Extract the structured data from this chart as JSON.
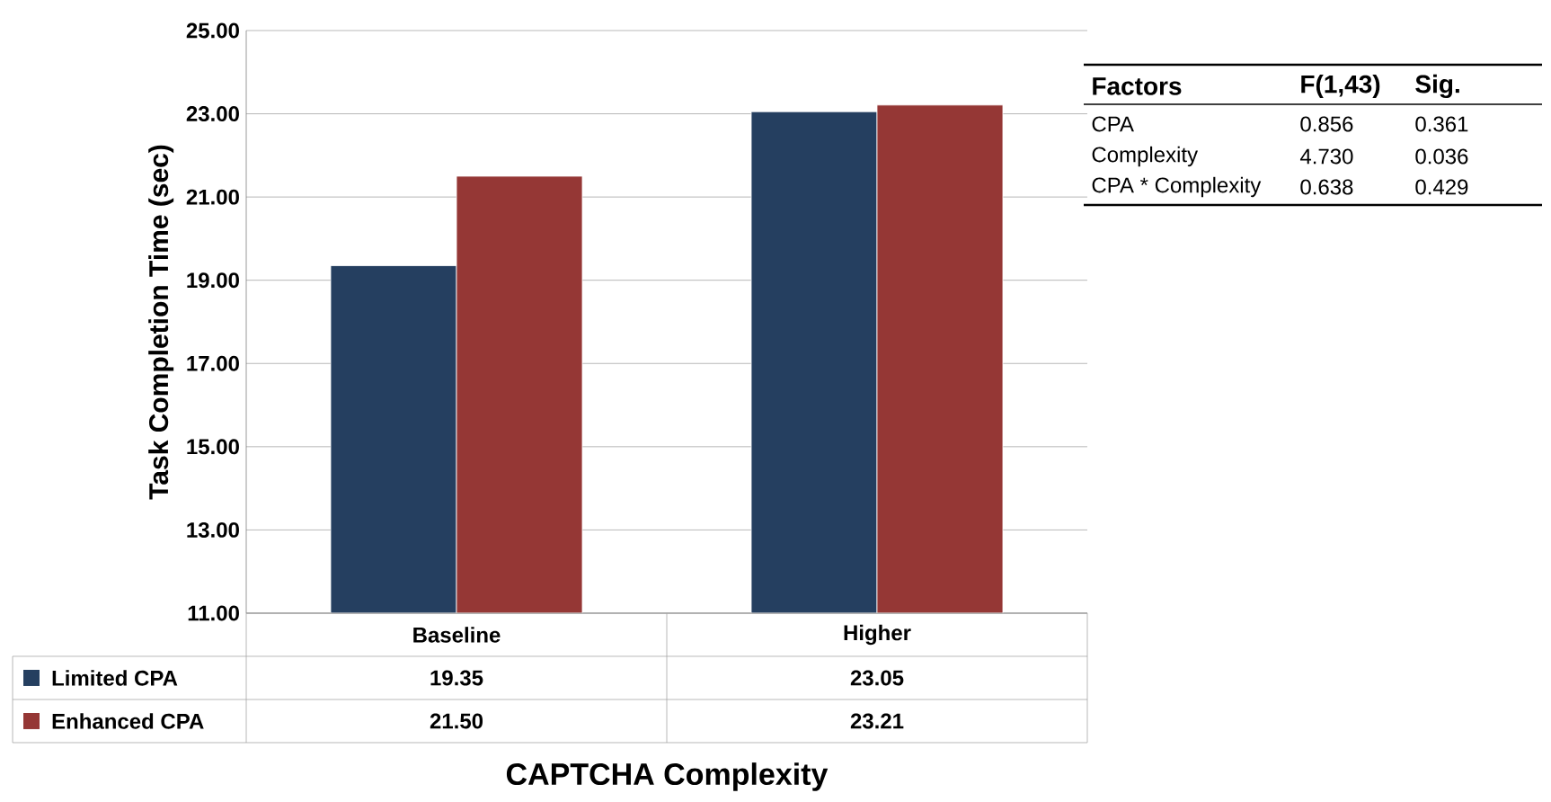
{
  "chart_data": {
    "type": "bar",
    "ylabel": "Task Completion Time (sec)",
    "xlabel": "CAPTCHA Complexity",
    "categories": [
      "Baseline",
      "Higher"
    ],
    "series": [
      {
        "name": "Limited CPA",
        "color": "#253f60",
        "values": [
          19.35,
          23.05
        ],
        "value_labels": [
          "19.35",
          "23.05"
        ]
      },
      {
        "name": "Enhanced CPA",
        "color": "#953735",
        "values": [
          21.5,
          23.21
        ],
        "value_labels": [
          "21.50",
          "23.21"
        ]
      }
    ],
    "ylim": [
      11,
      25
    ],
    "yticks": [
      {
        "value": 11,
        "label": "11.00"
      },
      {
        "value": 13,
        "label": "13.00"
      },
      {
        "value": 15,
        "label": "15.00"
      },
      {
        "value": 17,
        "label": "17.00"
      },
      {
        "value": 19,
        "label": "19.00"
      },
      {
        "value": 21,
        "label": "21.00"
      },
      {
        "value": 23,
        "label": "23.00"
      },
      {
        "value": 25,
        "label": "25.00"
      }
    ],
    "grid": "y",
    "legend": "bottom",
    "annotations": [
      "Factors",
      "F(1,43)",
      "Sig.",
      "CPA",
      "0.856",
      "0.361",
      "Complexity",
      "4.730",
      "0.036",
      "CPA * Complexity",
      "0.638",
      "0.429"
    ]
  }
}
